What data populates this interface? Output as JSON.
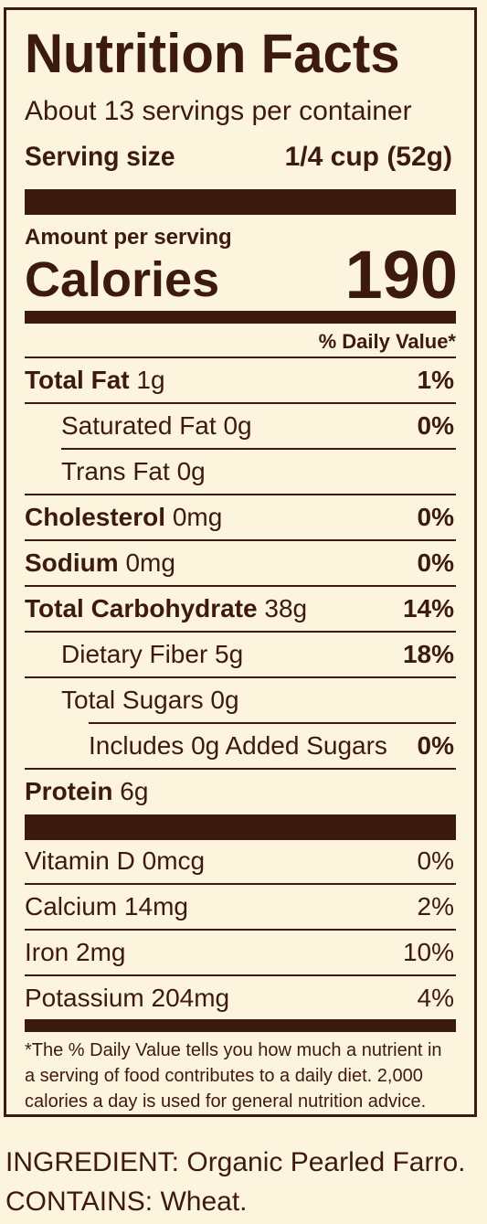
{
  "label": {
    "title": "Nutrition Facts",
    "servings_per_container": "About 13 servings per container",
    "serving_size_label": "Serving size",
    "serving_size_value": "1/4 cup (52g)",
    "amount_per_serving": "Amount per serving",
    "calories_label": "Calories",
    "calories_value": "190",
    "daily_value_header": "% Daily Value*",
    "nutrients": [
      {
        "name": "Total Fat",
        "amount": "1g",
        "dv": "1%"
      },
      {
        "name": "Saturated Fat",
        "amount": "0g",
        "dv": "0%"
      },
      {
        "name": "Trans Fat",
        "amount": "0g",
        "dv": ""
      },
      {
        "name": "Cholesterol",
        "amount": "0mg",
        "dv": "0%"
      },
      {
        "name": "Sodium",
        "amount": "0mg",
        "dv": "0%"
      },
      {
        "name": "Total Carbohydrate",
        "amount": "38g",
        "dv": "14%"
      },
      {
        "name": "Dietary Fiber",
        "amount": "5g",
        "dv": "18%"
      },
      {
        "name": "Total Sugars",
        "amount": "0g",
        "dv": ""
      },
      {
        "name": "Includes 0g Added Sugars",
        "amount": "",
        "dv": "0%"
      },
      {
        "name": "Protein",
        "amount": "6g",
        "dv": ""
      }
    ],
    "vitamins": [
      {
        "name": "Vitamin D",
        "amount": "0mcg",
        "dv": "0%"
      },
      {
        "name": "Calcium",
        "amount": "14mg",
        "dv": "2%"
      },
      {
        "name": "Iron",
        "amount": "2mg",
        "dv": "10%"
      },
      {
        "name": "Potassium",
        "amount": "204mg",
        "dv": "4%"
      }
    ],
    "footnote_lines": [
      "*The % Daily Value tells you how much a nutrient in",
      "a serving of food contributes to a daily diet. 2,000",
      "calories a day is used for general nutrition advice."
    ]
  },
  "ingredients": {
    "ingredient_line": "INGREDIENT: Organic Pearled Farro.",
    "contains_line": "CONTAINS: Wheat."
  },
  "colors": {
    "background": "#fcf4dd",
    "ink": "#3d1a10"
  }
}
